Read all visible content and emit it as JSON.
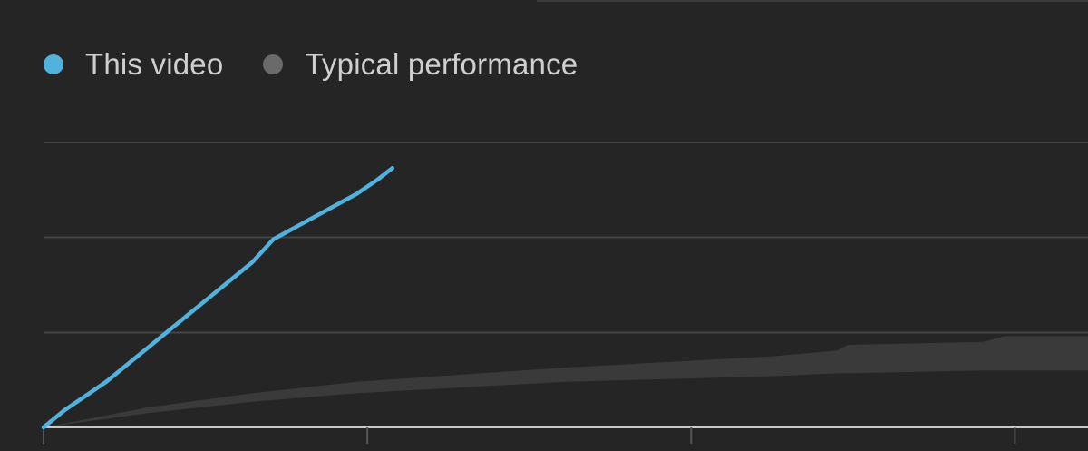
{
  "colors": {
    "background": "#252525",
    "this_video": "#4fb3de",
    "typical": "#6a6a6a",
    "typical_band": "#3a3a3a",
    "grid": "#444444",
    "axis": "#c8c8c8"
  },
  "legend": {
    "items": [
      {
        "label": "This video",
        "color": "#4fb3de"
      },
      {
        "label": "Typical performance",
        "color": "#6a6a6a"
      }
    ]
  },
  "chart_data": {
    "type": "line",
    "title": "",
    "xlabel": "",
    "ylabel": "",
    "xlim": [
      0,
      100
    ],
    "ylim": [
      0,
      100
    ],
    "grid": true,
    "y_gridlines": [
      33.3,
      66.7,
      100
    ],
    "x_ticks": [
      0,
      31,
      62,
      93
    ],
    "legend_position": "top-left",
    "series": [
      {
        "name": "This video",
        "x": [
          0,
          2,
          4,
          6,
          8,
          10,
          12,
          14,
          16,
          18,
          20,
          22,
          24,
          26,
          28,
          30,
          32,
          33.4
        ],
        "y": [
          0,
          6,
          11,
          16,
          22,
          28,
          34,
          40,
          46,
          52,
          58,
          66,
          70,
          74,
          78,
          82,
          87,
          91
        ]
      },
      {
        "name": "Typical performance",
        "x": [
          0,
          10,
          20,
          30,
          40,
          50,
          60,
          70,
          76,
          77,
          90,
          92,
          100
        ],
        "y_low": [
          0,
          5,
          9,
          12,
          14,
          16,
          17,
          18,
          19,
          19,
          20,
          20,
          20
        ],
        "y_high": [
          0,
          7,
          12,
          16,
          18.5,
          21,
          23,
          25,
          27,
          29,
          30,
          32,
          32
        ]
      }
    ]
  }
}
